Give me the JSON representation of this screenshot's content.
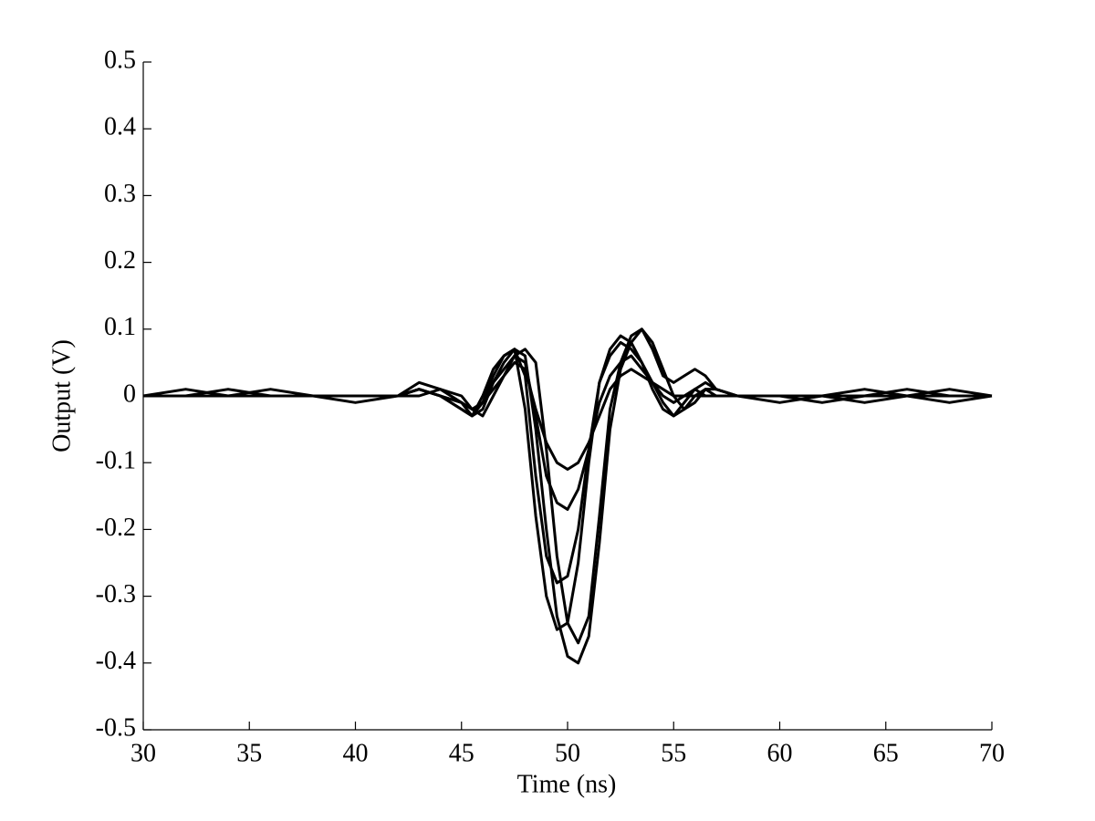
{
  "chart_data": {
    "type": "line",
    "x_label": "Time (ns)",
    "y_label": "Output (V)",
    "x": [
      30,
      32,
      34,
      36,
      38,
      40,
      42,
      43,
      44,
      45,
      45.5,
      46,
      46.5,
      47,
      47.5,
      48,
      48.5,
      49,
      49.5,
      50,
      50.5,
      51,
      51.5,
      52,
      52.5,
      53,
      53.5,
      54,
      54.5,
      55,
      55.5,
      56,
      56.5,
      57,
      58,
      60,
      62,
      64,
      66,
      68,
      70
    ],
    "series": [
      {
        "color": "#000000",
        "values": [
          0,
          0,
          0,
          0,
          0,
          0,
          0,
          0.01,
          0,
          -0.01,
          -0.03,
          -0.02,
          0.02,
          0.05,
          0.07,
          0.06,
          -0.05,
          -0.2,
          -0.33,
          -0.39,
          -0.4,
          -0.36,
          -0.22,
          -0.05,
          0.04,
          0.08,
          0.1,
          0.08,
          0.04,
          0,
          -0.02,
          -0.01,
          0.01,
          0.01,
          0,
          -0.01,
          0,
          0,
          0,
          0,
          0
        ]
      },
      {
        "color": "#000000",
        "values": [
          0,
          0,
          0,
          0,
          0,
          0,
          0,
          0.01,
          0,
          -0.01,
          -0.02,
          -0.01,
          0.01,
          0.03,
          0.05,
          0.04,
          -0.02,
          -0.07,
          -0.1,
          -0.11,
          -0.1,
          -0.07,
          -0.03,
          0.01,
          0.03,
          0.04,
          0.03,
          0.02,
          0.01,
          0,
          0,
          0,
          0,
          0,
          0,
          0,
          0,
          0,
          0,
          0,
          0
        ]
      },
      {
        "color": "#000000",
        "values": [
          0,
          0.01,
          0,
          0,
          0,
          0,
          0,
          0.01,
          0,
          -0.02,
          -0.03,
          0,
          0.04,
          0.06,
          0.07,
          -0.02,
          -0.18,
          -0.3,
          -0.35,
          -0.34,
          -0.25,
          -0.1,
          0.02,
          0.06,
          0.08,
          0.07,
          0.05,
          0.02,
          -0.01,
          -0.03,
          -0.02,
          0,
          0.01,
          0,
          0,
          0,
          0,
          0.01,
          0,
          -0.01,
          0
        ]
      },
      {
        "color": "#000000",
        "values": [
          0,
          0,
          0,
          0.01,
          0,
          0,
          0,
          0.02,
          0.01,
          0,
          -0.02,
          -0.03,
          0,
          0.03,
          0.06,
          0.07,
          0.05,
          -0.08,
          -0.24,
          -0.34,
          -0.37,
          -0.33,
          -0.18,
          -0.02,
          0.05,
          0.09,
          0.1,
          0.07,
          0.03,
          0.02,
          0.03,
          0.04,
          0.03,
          0.01,
          0,
          0,
          -0.01,
          0,
          0.01,
          0,
          0
        ]
      },
      {
        "color": "#000000",
        "values": [
          0,
          0,
          0,
          0,
          0,
          0,
          0,
          0,
          0.01,
          -0.01,
          -0.02,
          -0.01,
          0.02,
          0.04,
          0.06,
          0.05,
          -0.03,
          -0.12,
          -0.16,
          -0.17,
          -0.14,
          -0.08,
          -0.01,
          0.03,
          0.05,
          0.06,
          0.04,
          0.02,
          0,
          -0.01,
          0,
          0.01,
          0,
          0,
          0,
          0,
          0,
          -0.01,
          0,
          0,
          0
        ]
      },
      {
        "color": "#000000",
        "values": [
          0,
          0,
          0.01,
          0,
          0,
          -0.01,
          0,
          0.01,
          0,
          -0.02,
          -0.03,
          -0.01,
          0.03,
          0.06,
          0.07,
          0.03,
          -0.12,
          -0.24,
          -0.28,
          -0.27,
          -0.2,
          -0.08,
          0.02,
          0.07,
          0.09,
          0.08,
          0.05,
          0.01,
          -0.02,
          -0.03,
          -0.01,
          0.01,
          0.02,
          0.01,
          0,
          0,
          0,
          0,
          0,
          0.01,
          0
        ]
      }
    ],
    "xlim": [
      30,
      70
    ],
    "xticks": [
      30,
      35,
      40,
      45,
      50,
      55,
      60,
      65,
      70
    ],
    "ylim": [
      -0.5,
      0.5
    ],
    "yticks": [
      0.5,
      0.4,
      0.3,
      0.2,
      0.1,
      0,
      -0.1,
      -0.2,
      -0.3,
      -0.4,
      -0.5
    ],
    "grid": false
  }
}
